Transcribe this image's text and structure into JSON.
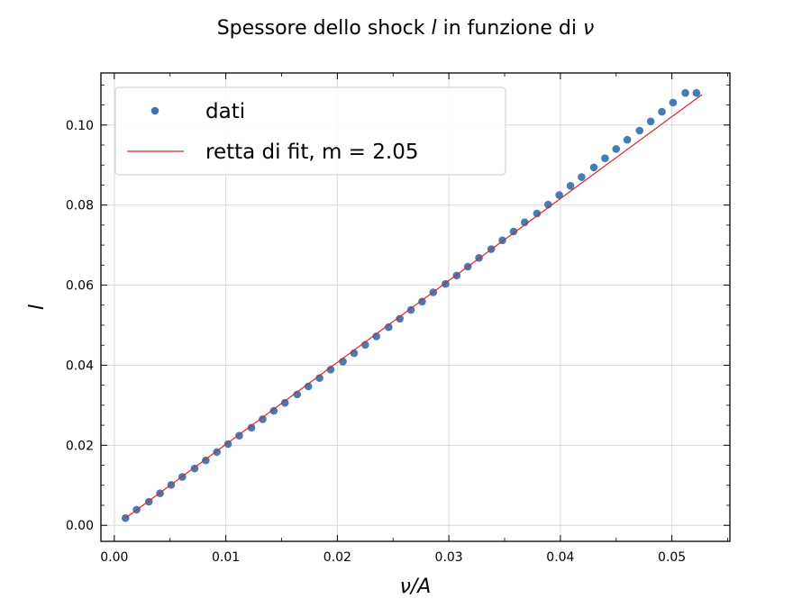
{
  "chart_data": {
    "type": "scatter",
    "title": "Spessore dello shock l in funzione di ν",
    "xlabel": "ν/A",
    "ylabel": "l",
    "xlim": [
      -0.0012,
      0.0552
    ],
    "ylim": [
      -0.004,
      0.113
    ],
    "xticks": [
      0.0,
      0.01,
      0.02,
      0.03,
      0.04,
      0.05
    ],
    "xtick_labels": [
      "0.00",
      "0.01",
      "0.02",
      "0.03",
      "0.04",
      "0.05"
    ],
    "yticks": [
      0.0,
      0.02,
      0.04,
      0.06,
      0.08,
      0.1
    ],
    "ytick_labels": [
      "0.00",
      "0.02",
      "0.04",
      "0.06",
      "0.08",
      "0.10"
    ],
    "grid": true,
    "legend_position": "top-left",
    "series": [
      {
        "name": "dati",
        "kind": "scatter",
        "color": "#3b75af",
        "x": [
          0.001,
          0.002,
          0.0031,
          0.0041,
          0.0051,
          0.0061,
          0.0072,
          0.0082,
          0.0092,
          0.0102,
          0.0112,
          0.0123,
          0.0133,
          0.0143,
          0.0153,
          0.0164,
          0.0174,
          0.0184,
          0.0194,
          0.0205,
          0.0215,
          0.0225,
          0.0235,
          0.0246,
          0.0256,
          0.0266,
          0.0276,
          0.0286,
          0.0297,
          0.0307,
          0.0317,
          0.0327,
          0.0338,
          0.0348,
          0.0358,
          0.0368,
          0.0379,
          0.0389,
          0.0399,
          0.0409,
          0.0419,
          0.043,
          0.044,
          0.045,
          0.046,
          0.0471,
          0.0481,
          0.0491,
          0.0501,
          0.0512,
          0.0522
        ],
        "y": [
          0.0018,
          0.0039,
          0.0059,
          0.008,
          0.0101,
          0.0121,
          0.0142,
          0.0162,
          0.0183,
          0.0203,
          0.0224,
          0.0244,
          0.0265,
          0.0286,
          0.0306,
          0.0327,
          0.0347,
          0.0368,
          0.0389,
          0.0409,
          0.043,
          0.0451,
          0.0472,
          0.0495,
          0.0516,
          0.0538,
          0.0559,
          0.0582,
          0.0603,
          0.0624,
          0.0646,
          0.0668,
          0.069,
          0.0712,
          0.0734,
          0.0757,
          0.0779,
          0.0801,
          0.0825,
          0.0848,
          0.087,
          0.0894,
          0.0917,
          0.094,
          0.0963,
          0.0986,
          0.1009,
          0.1033,
          0.1056,
          0.108,
          0.108
        ]
      },
      {
        "name": "retta di fit, m = 2.05",
        "kind": "line",
        "color": "#d62728",
        "x": [
          0.001,
          0.0527
        ],
        "y": [
          0.0018,
          0.1076
        ]
      }
    ]
  }
}
